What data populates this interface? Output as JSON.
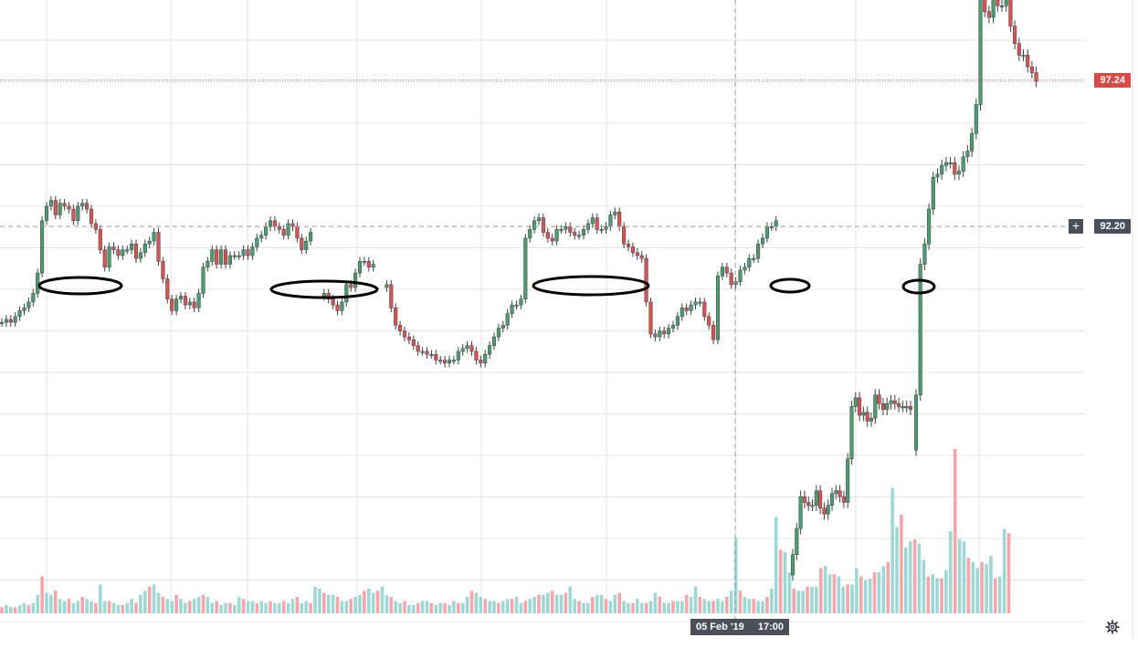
{
  "chart_data": {
    "type": "candlestick",
    "price_axis": {
      "ymin": 78.0,
      "ymax": 100.0
    },
    "last_price": "97.24",
    "last_price_value": 97.24,
    "crosshair_price": "92.20",
    "crosshair_price_value": 92.2,
    "crosshair_date": "05 Feb '19",
    "crosshair_time": "17:00",
    "crosshair_bar_index": 94,
    "candles_close": [
      88.9,
      89.0,
      88.9,
      89.1,
      89.3,
      89.4,
      89.6,
      89.9,
      90.6,
      92.4,
      92.9,
      93.1,
      92.6,
      93.0,
      92.9,
      92.8,
      92.4,
      92.9,
      93.0,
      92.8,
      92.3,
      92.1,
      91.4,
      90.8,
      91.5,
      91.4,
      91.2,
      91.4,
      91.4,
      91.6,
      91.1,
      91.3,
      91.6,
      91.7,
      92.0,
      91.0,
      90.4,
      89.7,
      89.3,
      89.7,
      89.8,
      89.5,
      89.6,
      89.4,
      89.9,
      90.8,
      91.0,
      91.4,
      90.9,
      91.4,
      90.9,
      91.2,
      91.2,
      91.2,
      91.4,
      91.2,
      91.5,
      91.8,
      91.9,
      92.2,
      92.4,
      92.2,
      92.1,
      91.9,
      92.3,
      92.2,
      91.8,
      91.4,
      91.7,
      92.0,
      null,
      null,
      89.9,
      89.7,
      89.5,
      89.3,
      89.6,
      90.2,
      90.1,
      90.6,
      91.0,
      91.0,
      90.8,
      90.9,
      null,
      null,
      90.2,
      89.4,
      88.8,
      88.6,
      88.4,
      88.3,
      88.1,
      87.9,
      87.9,
      87.8,
      87.8,
      87.6,
      87.6,
      87.5,
      87.6,
      87.6,
      87.9,
      88.0,
      88.1,
      87.9,
      87.6,
      87.5,
      87.8,
      88.1,
      88.4,
      88.7,
      88.8,
      89.2,
      89.5,
      89.5,
      89.7,
      91.8,
      92.1,
      92.4,
      92.5,
      92.0,
      91.8,
      91.7,
      92.1,
      92.1,
      92.2,
      92.0,
      91.9,
      91.9,
      92.1,
      92.3,
      92.5,
      92.1,
      92.1,
      92.2,
      92.6,
      92.7,
      92.2,
      91.6,
      91.5,
      91.3,
      91.2,
      91.1,
      89.6,
      88.5,
      88.4,
      88.6,
      88.5,
      88.7,
      88.8,
      89.1,
      89.4,
      89.3,
      89.5,
      89.6,
      89.6,
      89.1,
      88.8,
      88.3,
      90.5,
      90.8,
      90.6,
      90.2,
      90.3,
      90.7,
      90.8,
      91.1,
      91.1,
      91.6,
      91.8,
      92.2,
      92.2,
      92.4,
      null,
      null,
      null,
      null,
      null,
      null,
      null,
      null,
      null,
      null,
      null,
      null,
      null,
      null,
      null,
      null,
      null,
      null,
      null,
      null,
      null,
      null,
      null,
      null,
      null,
      null,
      null,
      null,
      null,
      null,
      null,
      null,
      null,
      null,
      null,
      null,
      null,
      null,
      null,
      null,
      null,
      null,
      null,
      null,
      null,
      null,
      null,
      null,
      null,
      null,
      null,
      null,
      null,
      null,
      null,
      null,
      null,
      null,
      null,
      null,
      null,
      null,
      null,
      null,
      null,
      null,
      null,
      null,
      null,
      null,
      null,
      null
    ],
    "segments": [
      {
        "from": 0,
        "to": 69
      },
      {
        "from": 72,
        "to": 83
      },
      {
        "from": 86,
        "to": 163
      }
    ],
    "breakout_closes": [
      86.4,
      90.9,
      91.6,
      92.8,
      93.9,
      94.0,
      94.3,
      94.4,
      94.4,
      94.0,
      94.1,
      94.6,
      94.8,
      95.4,
      96.4,
      100.8,
      99.6,
      99.4,
      100.2,
      99.8,
      99.8,
      100.4,
      99.1,
      98.5,
      98.1,
      98.1,
      97.7,
      97.5,
      97.2
    ],
    "lower_panel_closes": [
      80.9,
      81.8,
      82.9,
      82.7,
      82.6,
      82.6,
      83.1,
      82.5,
      82.3,
      82.6,
      83.0,
      83.1,
      82.9,
      82.7,
      84.2,
      86.0,
      86.3,
      85.7,
      85.8,
      85.5,
      85.6,
      86.4,
      86.1,
      85.9,
      86.1,
      86.2,
      86.1,
      86.0,
      86.0,
      86.0,
      85.9
    ],
    "volume": [
      3,
      4,
      3,
      3,
      4,
      5,
      4,
      5,
      9,
      18,
      10,
      9,
      11,
      7,
      6,
      7,
      5,
      6,
      8,
      7,
      6,
      5,
      14,
      6,
      6,
      5,
      4,
      4,
      5,
      7,
      5,
      9,
      11,
      13,
      14,
      10,
      8,
      7,
      6,
      9,
      7,
      5,
      6,
      7,
      8,
      9,
      8,
      5,
      6,
      4,
      5,
      5,
      4,
      8,
      7,
      6,
      6,
      5,
      6,
      5,
      6,
      5,
      5,
      6,
      5,
      7,
      8,
      5,
      6,
      5,
      13,
      12,
      10,
      9,
      9,
      8,
      6,
      6,
      7,
      8,
      9,
      11,
      12,
      10,
      11,
      13,
      9,
      8,
      6,
      5,
      6,
      4,
      4,
      5,
      6,
      6,
      5,
      4,
      5,
      5,
      4,
      6,
      5,
      5,
      8,
      11,
      10,
      8,
      7,
      6,
      6,
      5,
      6,
      7,
      7,
      8,
      5,
      6,
      7,
      8,
      9,
      9,
      10,
      11,
      9,
      9,
      10,
      13,
      7,
      6,
      5,
      5,
      8,
      9,
      9,
      7,
      6,
      9,
      10,
      6,
      5,
      5,
      7,
      5,
      5,
      6,
      10,
      8,
      5,
      5,
      6,
      6,
      6,
      9,
      8,
      13,
      8,
      7,
      6,
      6,
      7,
      6,
      8,
      11,
      37,
      11,
      8,
      7,
      7,
      6,
      6,
      8,
      12,
      47,
      31,
      30,
      20,
      12,
      11,
      11,
      13,
      13,
      13,
      22,
      23,
      19,
      19,
      18,
      13,
      14,
      14,
      22,
      18,
      16,
      17,
      20,
      20,
      23,
      25,
      61,
      42,
      48,
      32,
      35,
      36,
      34,
      26,
      18,
      19,
      17,
      17,
      21,
      40,
      80,
      36,
      35,
      27,
      25,
      22,
      25,
      24,
      28,
      17,
      18,
      41,
      39
    ],
    "annotation_ellipses": [
      {
        "label": "",
        "center_bar": 14
      },
      {
        "label": "",
        "center_bar": 58
      },
      {
        "label": "",
        "center_bar": 108
      },
      {
        "label": "",
        "center_bar": 141
      },
      {
        "label": "",
        "center_bar": 168
      }
    ]
  },
  "colors": {
    "up": "#53b987",
    "down": "#eb4d5c",
    "up_body": "#4e9c6e",
    "down_body": "#d9534f",
    "volume_up": "#9ed8d4",
    "volume_down": "#f4a6ab",
    "grid": "#e1e3e8",
    "last_price_line": "#d84b44",
    "crosshair_line": "#9598a1",
    "tag_dark": "#4a4f5a",
    "ellipse": "#000000"
  },
  "icons": {
    "settings": "gear-icon",
    "crosshair": "plus-icon"
  }
}
